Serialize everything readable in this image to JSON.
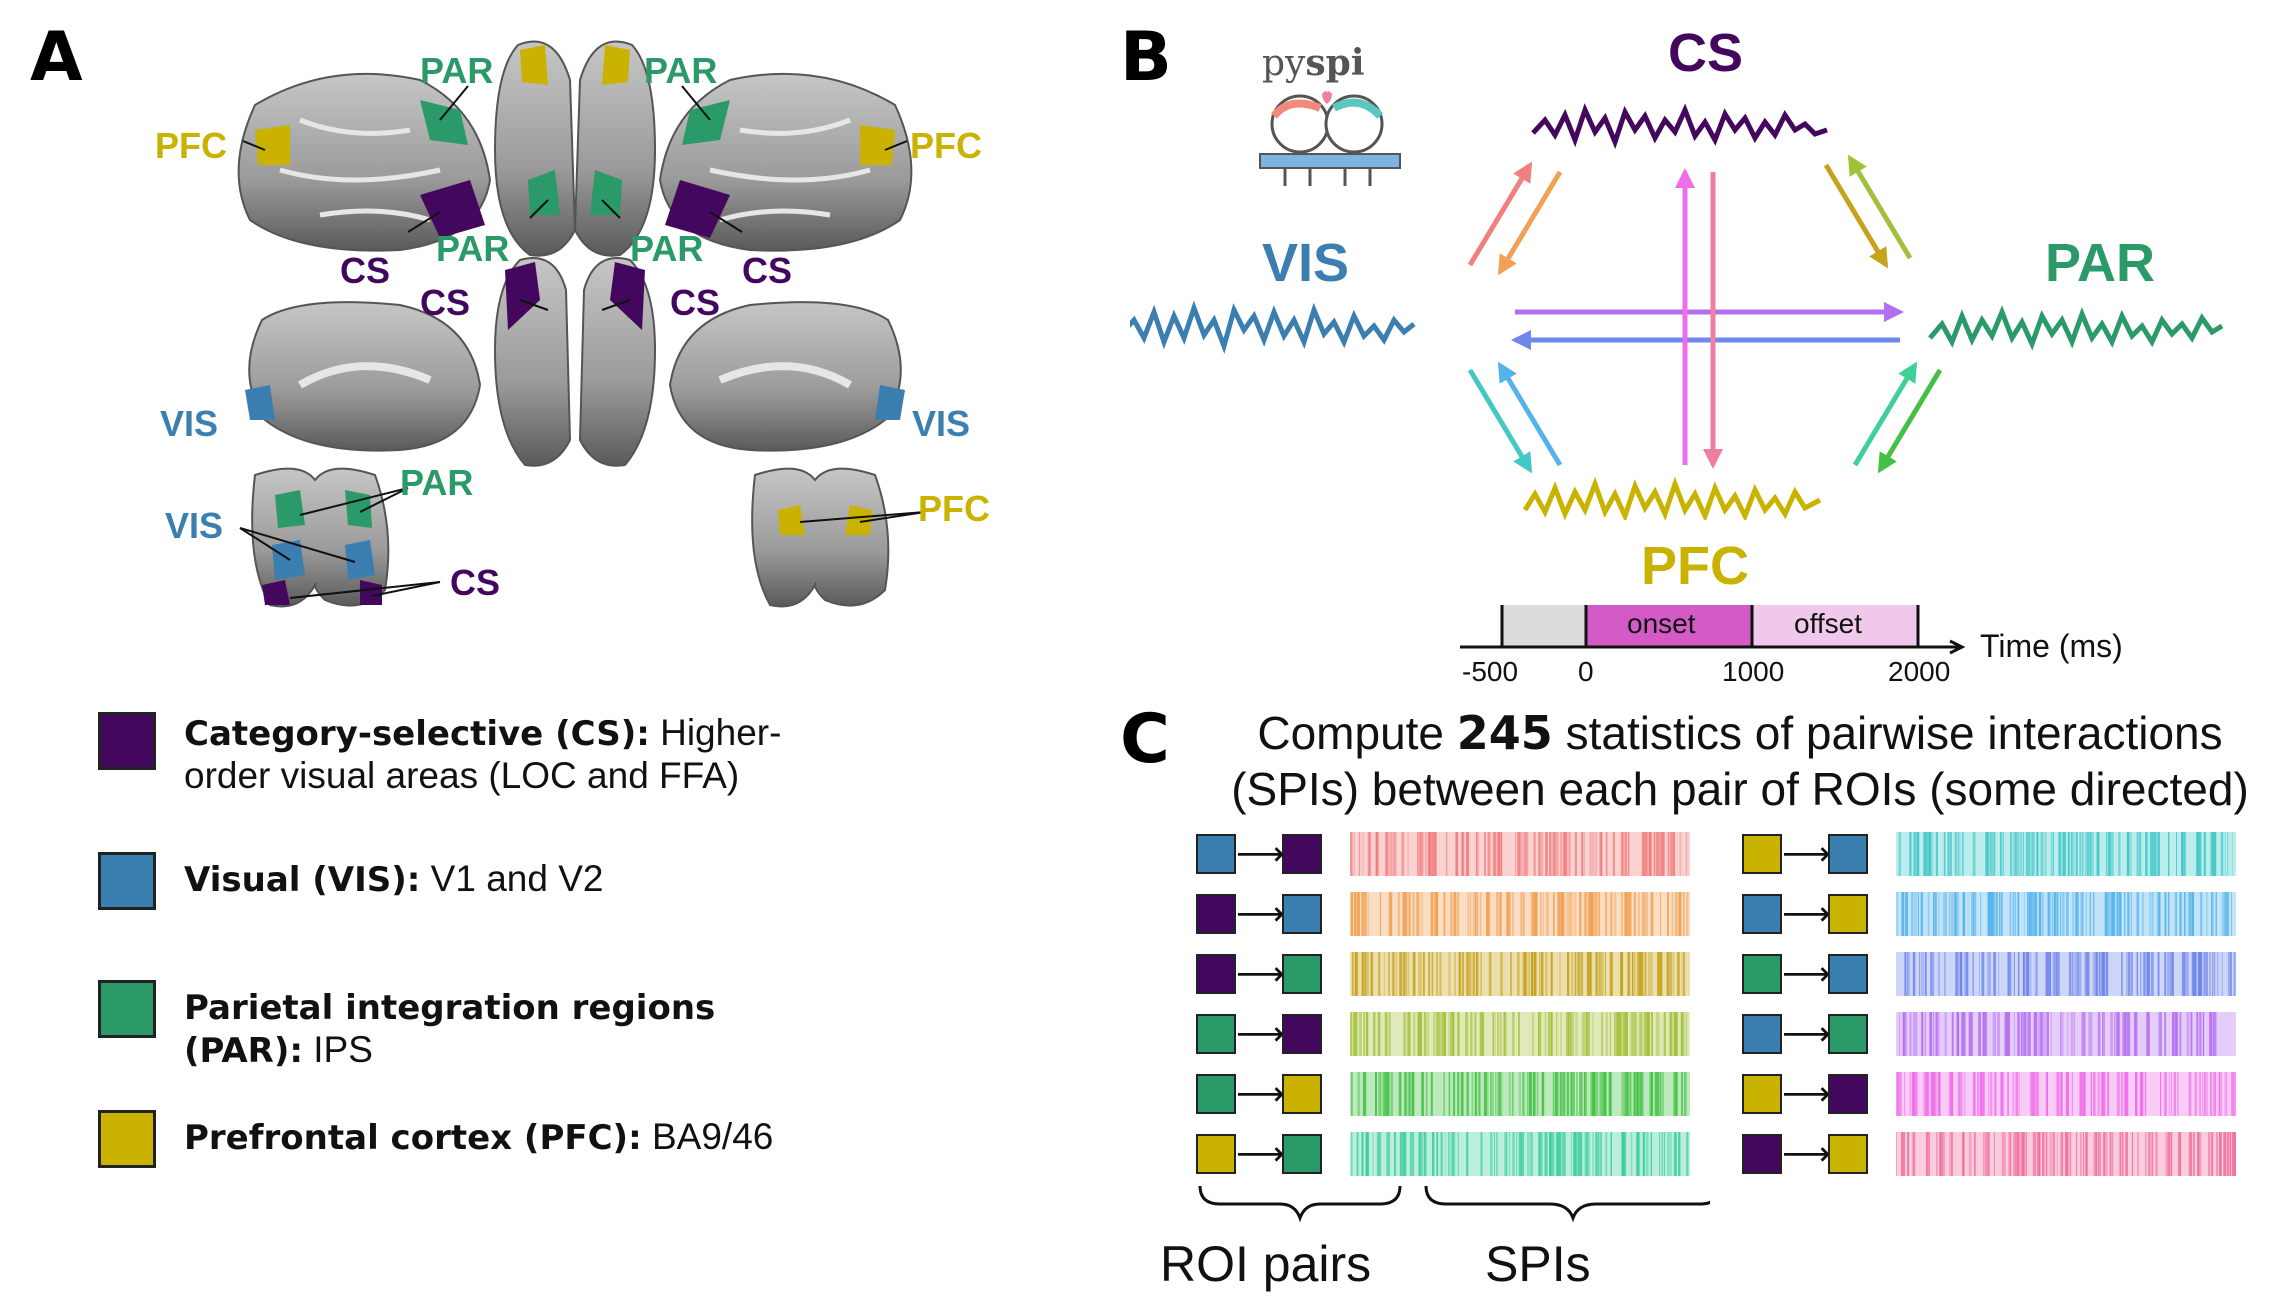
{
  "panels": {
    "a": "A",
    "b": "B",
    "c": "C"
  },
  "colors": {
    "cs": "#44075e",
    "vis": "#3b7eb0",
    "par": "#2a9a68",
    "pfc": "#c9b300"
  },
  "panel_a": {
    "labels": {
      "par": "PAR",
      "pfc": "PFC",
      "cs": "CS",
      "vis": "VIS"
    }
  },
  "legend": [
    {
      "key": "cs",
      "bold": "Category-selective (CS):",
      "rest": " Higher-order visual areas (LOC and FFA)"
    },
    {
      "key": "vis",
      "bold": "Visual (VIS):",
      "rest": " V1 and V2"
    },
    {
      "key": "par",
      "bold": "Parietal integration regions (PAR):",
      "rest": " IPS"
    },
    {
      "key": "pfc",
      "bold": "Prefrontal cortex (PFC):",
      "rest": " BA9/46"
    }
  ],
  "panel_b": {
    "logo_text_a": "py",
    "logo_text_b": "spi",
    "nodes": {
      "cs": "CS",
      "vis": "VIS",
      "par": "PAR",
      "pfc": "PFC"
    },
    "timeline": {
      "onset": "onset",
      "offset": "offset",
      "axis_label": "Time (ms)",
      "ticks": [
        "-500",
        "0",
        "1000",
        "2000"
      ]
    }
  },
  "panel_c": {
    "title_line1_pre": "Compute ",
    "title_line1_bold": "245",
    "title_line1_post": " statistics of pairwise interactions",
    "title_line2": "(SPIs) between each pair of ROIs (some directed)",
    "pairs_left": [
      {
        "from": "vis",
        "to": "cs",
        "color": "#f07f7f"
      },
      {
        "from": "cs",
        "to": "vis",
        "color": "#f0a155"
      },
      {
        "from": "cs",
        "to": "par",
        "color": "#c7a21c"
      },
      {
        "from": "par",
        "to": "cs",
        "color": "#a3c03a"
      },
      {
        "from": "par",
        "to": "pfc",
        "color": "#44c144"
      },
      {
        "from": "pfc",
        "to": "par",
        "color": "#3fcf9a"
      }
    ],
    "pairs_right": [
      {
        "from": "pfc",
        "to": "vis",
        "color": "#43c8c8"
      },
      {
        "from": "vis",
        "to": "pfc",
        "color": "#54b3ea"
      },
      {
        "from": "par",
        "to": "vis",
        "color": "#6f86ea"
      },
      {
        "from": "vis",
        "to": "par",
        "color": "#b46ff0"
      },
      {
        "from": "pfc",
        "to": "cs",
        "color": "#ee6ee8"
      },
      {
        "from": "cs",
        "to": "pfc",
        "color": "#f0709f"
      }
    ],
    "arrow": "⟶",
    "label_roi": "ROI pairs",
    "label_spi": "SPIs"
  }
}
